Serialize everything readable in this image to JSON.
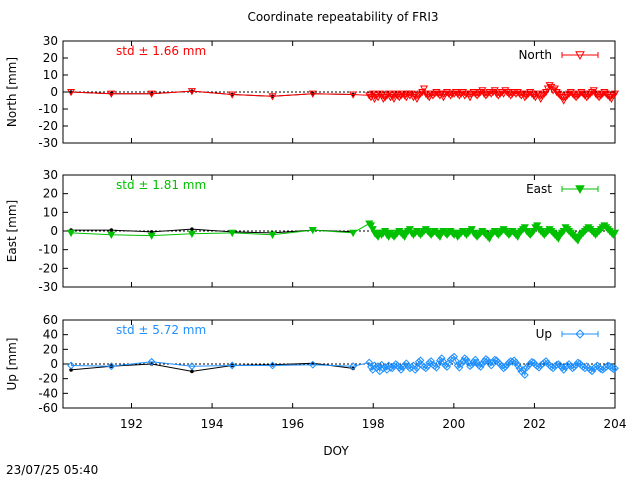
{
  "title": "Coordinate repeatability of FRI3",
  "timestamp": "23/07/25 05:40",
  "chart_data": [
    {
      "type": "line",
      "ylabel": "North [mm]",
      "legend": "North",
      "legend_position": "top-right",
      "std_label": "std ± 1.66 mm",
      "color": "#ff0000",
      "marker": "triangle-down-open",
      "xlim": [
        190.3,
        204.0
      ],
      "ylim": [
        -30,
        30
      ],
      "yticks": [
        30,
        20,
        10,
        0,
        -10,
        -20,
        -30
      ],
      "daily_x": [
        190.5,
        191.5,
        192.5,
        193.5,
        194.5,
        195.5,
        196.5,
        197.5
      ],
      "daily_y": [
        0,
        -1,
        -1,
        0.5,
        -1.5,
        -2.5,
        -1,
        -1.5
      ],
      "series_y": [
        0,
        -1,
        -1,
        0.5,
        -1.5,
        -2.5,
        -1,
        -1.5
      ],
      "dense_x_start": 197.9,
      "dense_x_end": 204.0,
      "dense_count": 140,
      "dense_y": [
        -2,
        -3,
        -1,
        -4,
        -2,
        -3,
        -1,
        -2,
        -4,
        -3,
        -2,
        -1,
        -3,
        -2,
        -4,
        -1,
        -2,
        -3,
        -2,
        -1,
        -2,
        -3,
        -1,
        -2,
        -1,
        -3,
        -2,
        -4,
        -2,
        -1,
        0,
        2,
        -1,
        -2,
        -3,
        -1,
        -2,
        -1,
        0,
        -1,
        -2,
        -1,
        -3,
        -1,
        0,
        -1,
        -2,
        -1,
        -1,
        0,
        -1,
        -2,
        -1,
        0,
        -2,
        -1,
        -1,
        -3,
        -1,
        0,
        -1,
        -2,
        -1,
        0,
        1,
        -1,
        -2,
        -1,
        0,
        -1,
        0,
        1,
        -1,
        -2,
        -1,
        0,
        -1,
        1,
        0,
        -1,
        -2,
        -1,
        0,
        -1,
        0,
        -1,
        -2,
        -1,
        -3,
        -2,
        -1,
        0,
        -1,
        -2,
        -3,
        -1,
        -2,
        -4,
        -2,
        -1,
        0,
        2,
        4,
        3,
        1,
        2,
        0,
        -1,
        -2,
        -3,
        -5,
        -3,
        -2,
        -1,
        0,
        -1,
        -2,
        -3,
        -2,
        -1,
        0,
        -1,
        -2,
        -3,
        -2,
        -1,
        0,
        1,
        -1,
        -2,
        -3,
        -2,
        -1,
        0,
        -1,
        -2,
        -3,
        -4,
        -2,
        -1
      ]
    },
    {
      "type": "line",
      "ylabel": "East [mm]",
      "legend": "East",
      "legend_position": "top-right",
      "std_label": "std ± 1.81 mm",
      "color": "#00c000",
      "marker": "triangle-down-filled",
      "xlim": [
        190.3,
        204.0
      ],
      "ylim": [
        -30,
        30
      ],
      "yticks": [
        30,
        20,
        10,
        0,
        -10,
        -20,
        -30
      ],
      "daily_x": [
        190.5,
        191.5,
        192.5,
        193.5,
        194.5,
        195.5,
        196.5,
        197.5
      ],
      "daily_y": [
        0.5,
        0.5,
        -0.5,
        1,
        -0.5,
        -1,
        0.5,
        -0.5
      ],
      "series_y": [
        -1,
        -2,
        -2.5,
        -1.5,
        -1,
        -2,
        0.5,
        -1
      ],
      "dense_x_start": 197.9,
      "dense_x_end": 204.0,
      "dense_count": 140,
      "dense_y": [
        4,
        3,
        1,
        -1,
        -2,
        -3,
        -1,
        -2,
        -1,
        0,
        -2,
        -3,
        -1,
        -2,
        -3,
        -2,
        -1,
        0,
        -1,
        -2,
        -3,
        -1,
        0,
        1,
        -1,
        -2,
        -1,
        0,
        -1,
        -2,
        -1,
        0,
        1,
        0,
        -1,
        -2,
        -1,
        0,
        -1,
        -2,
        -3,
        -1,
        0,
        -1,
        -2,
        -1,
        0,
        -1,
        -2,
        -1,
        -3,
        -2,
        -1,
        0,
        -1,
        -2,
        -1,
        0,
        1,
        -1,
        -2,
        -3,
        -2,
        -1,
        0,
        -1,
        -2,
        -3,
        -4,
        -2,
        -1,
        0,
        -1,
        -2,
        -1,
        0,
        1,
        0,
        -1,
        -2,
        -1,
        0,
        -1,
        -2,
        -3,
        -1,
        0,
        1,
        2,
        0,
        -1,
        -2,
        -1,
        0,
        2,
        3,
        1,
        0,
        -1,
        -2,
        -1,
        0,
        1,
        0,
        -1,
        -2,
        -3,
        -4,
        -2,
        -1,
        0,
        2,
        1,
        0,
        -1,
        -2,
        -3,
        -4,
        -5,
        -3,
        -2,
        -1,
        0,
        1,
        2,
        1,
        0,
        -1,
        -2,
        -1,
        0,
        1,
        2,
        3,
        2,
        1,
        0,
        -1,
        -2,
        -1
      ]
    },
    {
      "type": "line",
      "ylabel": "Up [mm]",
      "legend": "Up",
      "legend_position": "top-right",
      "std_label": "std ± 5.72 mm",
      "color": "#1e90ff",
      "marker": "diamond-open",
      "xlim": [
        190.3,
        204.0
      ],
      "ylim": [
        -60,
        60
      ],
      "yticks": [
        60,
        40,
        20,
        0,
        -20,
        -40,
        -60
      ],
      "daily_x": [
        190.5,
        191.5,
        192.5,
        193.5,
        194.5,
        195.5,
        196.5,
        197.5
      ],
      "daily_y": [
        -8,
        -3,
        0,
        -10,
        -2,
        -1,
        1,
        -6
      ],
      "series_y": [
        -2,
        -3,
        3,
        -3,
        -2,
        -2,
        -1,
        -3
      ],
      "dense_x_start": 197.9,
      "dense_x_end": 204.0,
      "dense_count": 140,
      "dense_y": [
        2,
        -4,
        -8,
        -2,
        -5,
        -3,
        -10,
        -1,
        -6,
        -4,
        -8,
        -2,
        -5,
        -6,
        -3,
        0,
        -2,
        -5,
        -8,
        -4,
        -2,
        1,
        -3,
        -6,
        -4,
        -2,
        -8,
        -5,
        3,
        5,
        -2,
        -4,
        -6,
        -3,
        2,
        4,
        -1,
        -3,
        -5,
        0,
        5,
        8,
        3,
        -2,
        -4,
        1,
        6,
        8,
        10,
        4,
        -2,
        -5,
        0,
        4,
        8,
        6,
        2,
        -3,
        -1,
        3,
        6,
        2,
        -2,
        -4,
        0,
        4,
        7,
        5,
        1,
        -2,
        3,
        6,
        5,
        2,
        0,
        -3,
        -6,
        -4,
        -1,
        2,
        4,
        3,
        5,
        2,
        -2,
        -6,
        -10,
        -8,
        -15,
        -5,
        -2,
        0,
        3,
        2,
        -1,
        -3,
        -5,
        -2,
        0,
        2,
        4,
        1,
        -2,
        -4,
        -6,
        -3,
        -1,
        0,
        -2,
        -5,
        -8,
        -4,
        -2,
        0,
        -3,
        -6,
        -4,
        -1,
        2,
        1,
        -2,
        -4,
        -6,
        -3,
        -5,
        -8,
        -10,
        -6,
        -4,
        -2,
        -5,
        -7,
        -8,
        -6,
        -4,
        -2,
        -3,
        -5,
        -7,
        -6
      ]
    }
  ],
  "x_axis": {
    "label": "DOY",
    "ticks": [
      192,
      194,
      196,
      198,
      200,
      202,
      204
    ]
  }
}
